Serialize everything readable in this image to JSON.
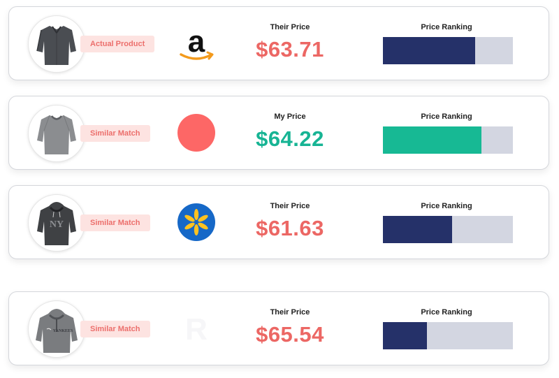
{
  "rows": [
    {
      "badge": "Actual Product",
      "retailer_icon": "amazon-logo-icon",
      "price_label": "Their Price",
      "price": "$63.71",
      "price_type": "their",
      "rank_label": "Price Ranking",
      "rank_fraction": 0.71
    },
    {
      "badge": "Similar Match",
      "retailer_icon": "my-store-circle-icon",
      "price_label": "My Price",
      "price": "$64.22",
      "price_type": "mine",
      "rank_label": "Price Ranking",
      "rank_fraction": 0.76
    },
    {
      "badge": "Similar Match",
      "retailer_icon": "walmart-logo-icon",
      "price_label": "Their Price",
      "price": "$61.63",
      "price_type": "their",
      "rank_label": "Price Ranking",
      "rank_fraction": 0.53
    },
    {
      "badge": "Similar Match",
      "retailer_icon": "faded-r-logo-icon",
      "price_label": "Their Price",
      "price": "$65.54",
      "price_type": "their",
      "rank_label": "Price Ranking",
      "rank_fraction": 0.34
    }
  ],
  "colors": {
    "their_price": "#ec6764",
    "my_price": "#17b494",
    "rank_fill": "#253169",
    "rank_fill_mine": "#17b994",
    "rank_track": "#d3d6e1",
    "badge_bg": "#fde3e1",
    "badge_text": "#ec6f6c",
    "walmart_blue": "#1668c7",
    "walmart_yellow": "#ffc220",
    "my_store": "#fd6766",
    "amazon_orange": "#f39a1c"
  }
}
